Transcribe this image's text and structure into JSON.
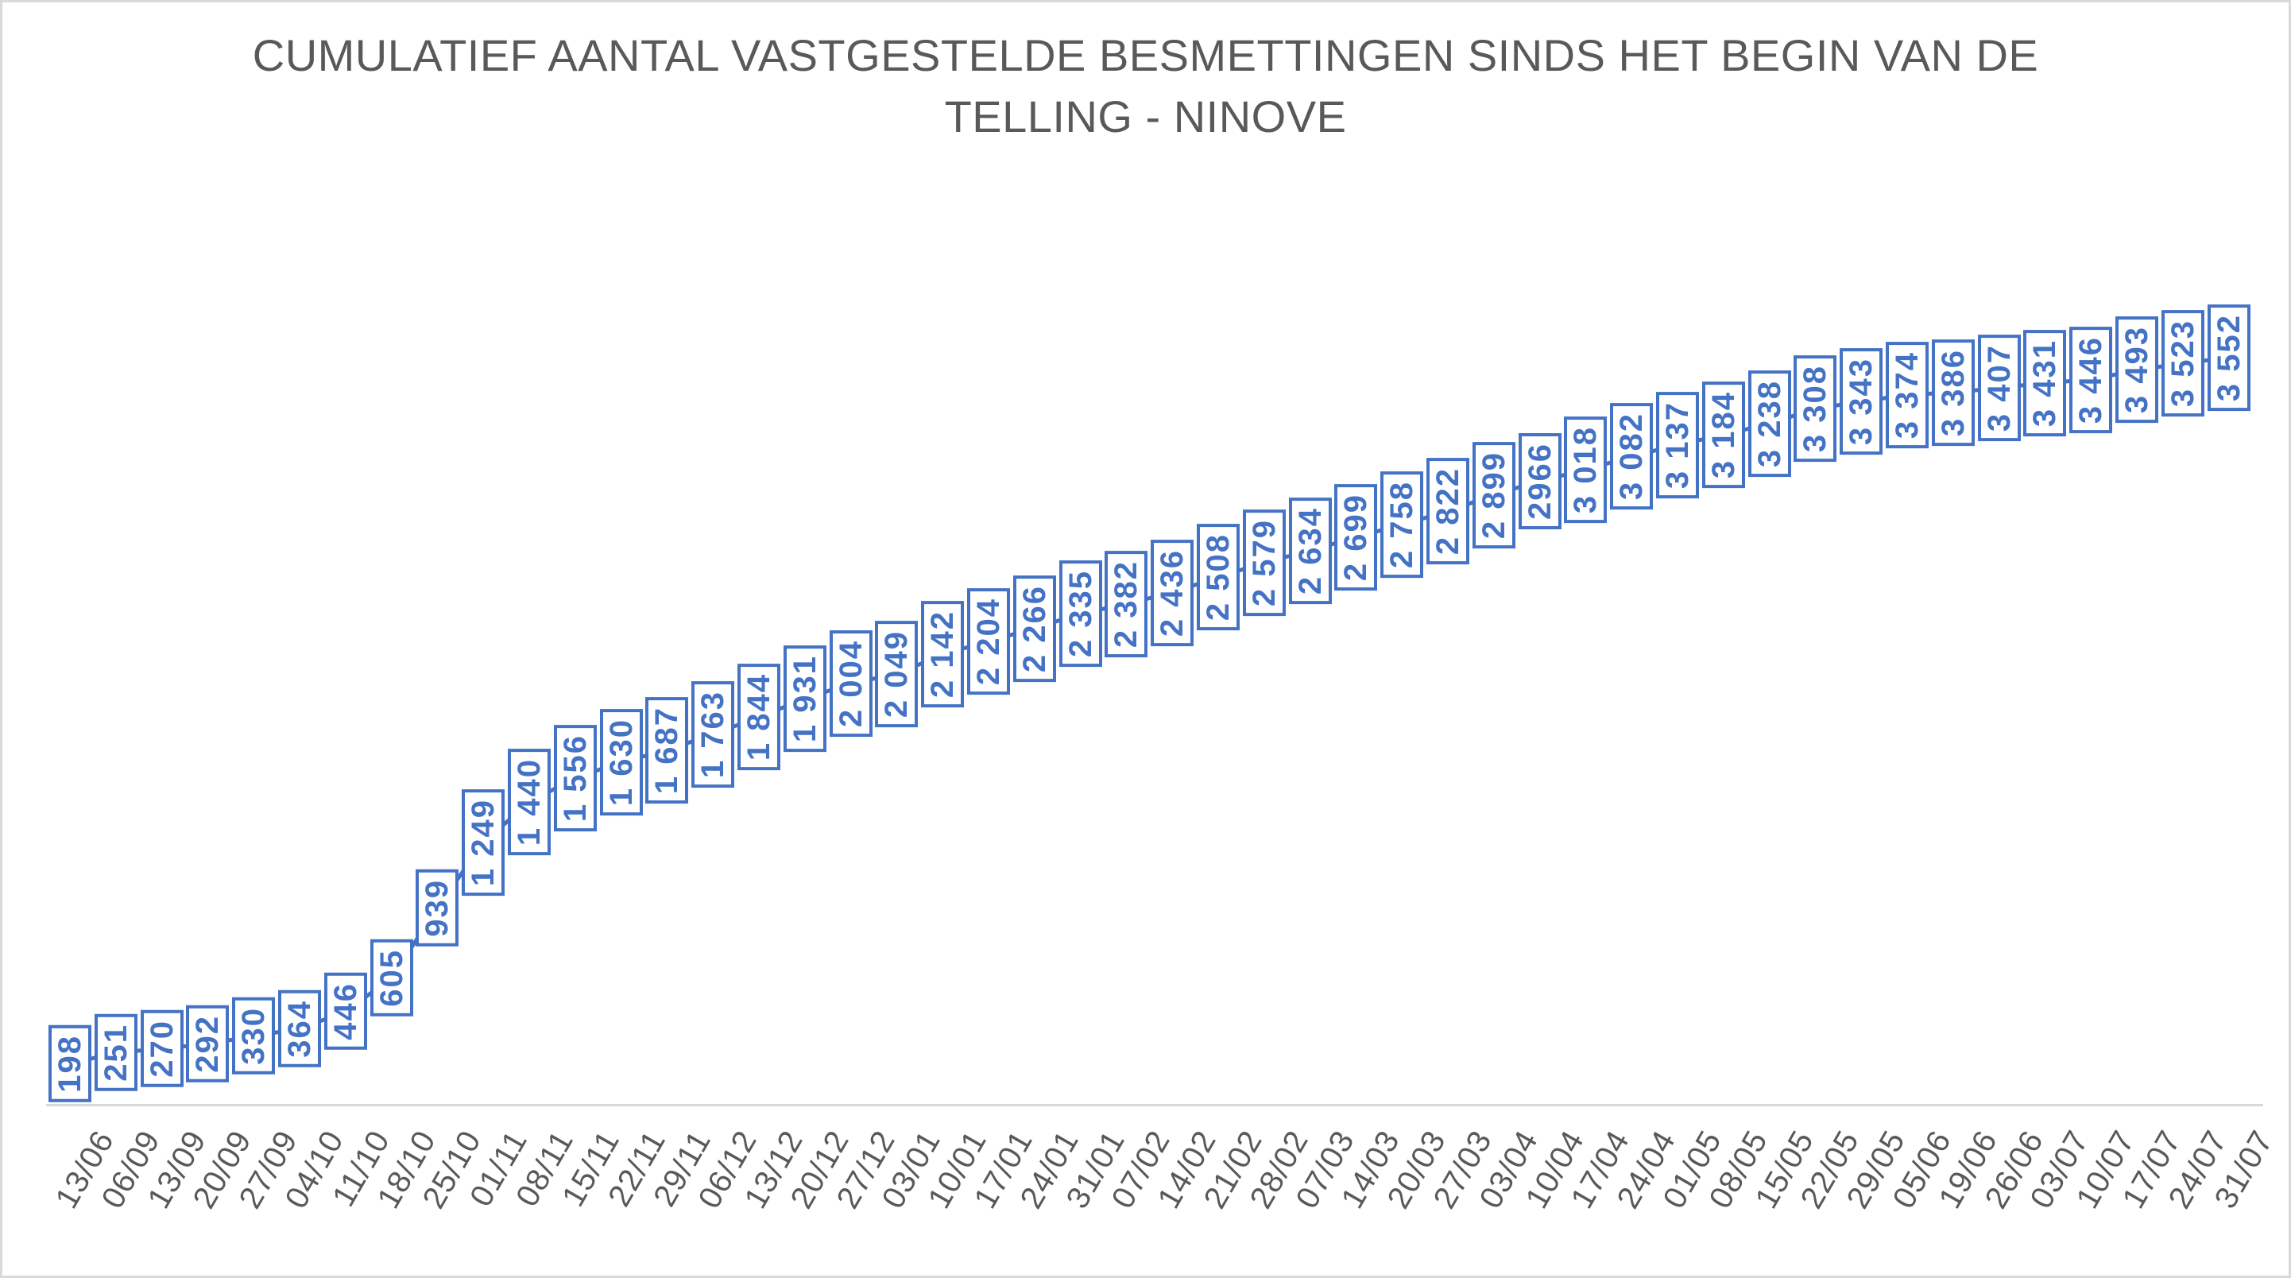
{
  "title_lines": {
    "line1": "CUMULATIEF AANTAL VASTGESTELDE BESMETTINGEN SINDS HET BEGIN VAN DE",
    "line2": "TELLING - NINOVE"
  },
  "chart_data": {
    "type": "line",
    "title": "CUMULATIEF AANTAL VASTGESTELDE BESMETTINGEN SINDS HET BEGIN VAN DE TELLING - NINOVE",
    "xlabel": "",
    "ylabel": "",
    "ylim": [
      0,
      3700
    ],
    "grid": false,
    "legend": false,
    "legend_position": "none",
    "categories": [
      "13/06",
      "06/09",
      "13/09",
      "20/09",
      "27/09",
      "04/10",
      "11/10",
      "18/10",
      "25/10",
      "01/11",
      "08/11",
      "15/11",
      "22/11",
      "29/11",
      "06/12",
      "13/12",
      "20/12",
      "27/12",
      "03/01",
      "10/01",
      "17/01",
      "24/01",
      "31/01",
      "07/02",
      "14/02",
      "21/02",
      "28/02",
      "07/03",
      "14/03",
      "20/03",
      "27/03",
      "03/04",
      "10/04",
      "17/04",
      "24/04",
      "01/05",
      "08/05",
      "15/05",
      "22/05",
      "29/05",
      "05/06",
      "19/06",
      "26/06",
      "03/07",
      "10/07",
      "17/07",
      "24/07",
      "31/07"
    ],
    "series": [
      {
        "name": "Cumulatief aantal vastgestelde besmettingen",
        "values": [
          198,
          251,
          270,
          292,
          330,
          364,
          446,
          605,
          939,
          1249,
          1440,
          1556,
          1630,
          1687,
          1763,
          1844,
          1931,
          2004,
          2049,
          2142,
          2204,
          2266,
          2335,
          2382,
          2436,
          2508,
          2579,
          2634,
          2699,
          2758,
          2822,
          2899,
          2966,
          3018,
          3082,
          3137,
          3184,
          3238,
          3308,
          3343,
          3374,
          3386,
          3407,
          3431,
          3446,
          3493,
          3523,
          3552
        ],
        "value_labels": [
          "198",
          "251",
          "270",
          "292",
          "330",
          "364",
          "446",
          "605",
          "939",
          "1 249",
          "1 440",
          "1 556",
          "1 630",
          "1 687",
          "1 763",
          "1 844",
          "1 931",
          "2 004",
          "2 049",
          "2 142",
          "2 204",
          "2 266",
          "2 335",
          "2 382",
          "2 436",
          "2 508",
          "2 579",
          "2 634",
          "2 699",
          "2 758",
          "2 822",
          "2 899",
          "2966",
          "3 018",
          "3 082",
          "3 137",
          "3 184",
          "3 238",
          "3 308",
          "3 343",
          "3 374",
          "3 386",
          "3 407",
          "3 431",
          "3 446",
          "3 493",
          "3 523",
          "3 552"
        ]
      }
    ],
    "colors": {
      "series_line": "#4472C4",
      "label_text": "#4472C4",
      "label_border": "#4472C4",
      "label_fill": "#FFFFFF",
      "axis_line": "#D9D9D9",
      "frame_border": "#D9D9D9",
      "title_text": "#595959",
      "tick_text": "#595959",
      "background": "#FFFFFF"
    }
  }
}
